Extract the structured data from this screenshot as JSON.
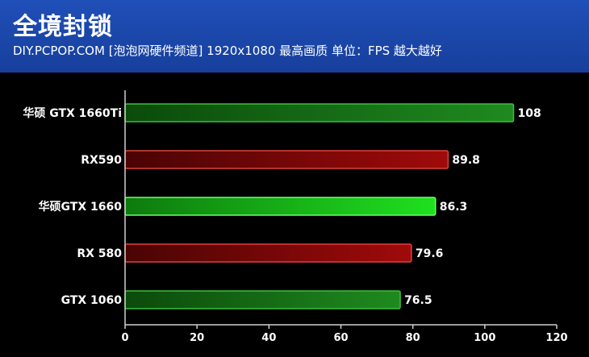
{
  "header": {
    "title": "全境封锁",
    "subtitle": "DIY.PCPOP.COM [泡泡网硬件频道] 1920x1080 最高画质 单位：FPS  越大越好"
  },
  "colors": {
    "header_bg": "#1f4fb8",
    "green_dark": "#1f8a1f",
    "green_bright": "#1fd41f",
    "red": "#9a0a0a"
  },
  "chart_data": {
    "type": "bar",
    "orientation": "horizontal",
    "categories": [
      "华硕 GTX 1660Ti",
      "RX590",
      "华硕GTX 1660",
      "RX 580",
      "GTX 1060"
    ],
    "values": [
      108,
      89.8,
      86.3,
      79.6,
      76.5
    ],
    "value_labels": [
      "108",
      "89.8",
      "86.3",
      "79.6",
      "76.5"
    ],
    "bar_colors": [
      "green_dark",
      "red",
      "green_bright",
      "red",
      "green_dark"
    ],
    "xlim": [
      0,
      120
    ],
    "xticks": [
      0,
      20,
      40,
      60,
      80,
      100,
      120
    ],
    "grid": false
  }
}
